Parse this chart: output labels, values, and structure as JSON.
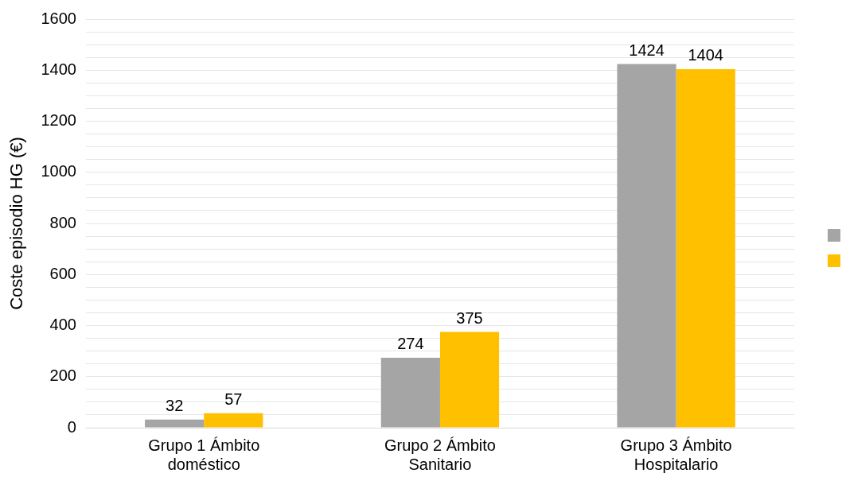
{
  "chart_data": {
    "type": "bar",
    "ylabel": "Coste episodio HG (€)",
    "categories": [
      "Grupo 1 Ámbito doméstico",
      "Grupo 2 Ámbito Sanitario",
      "Grupo 3 Ámbito Hospitalario"
    ],
    "series": [
      {
        "color": "#a5a5a5",
        "values": [
          32,
          274,
          1424
        ]
      },
      {
        "color": "#ffc000",
        "values": [
          57,
          375,
          1404
        ]
      }
    ],
    "ylim": [
      0,
      1600
    ],
    "yticks": [
      0,
      {
        "value": 50,
        "label": null
      },
      {
        "value": 100,
        "label": null
      },
      {
        "value": 150,
        "label": null
      },
      200,
      {
        "value": 250,
        "label": null
      },
      {
        "value": 300,
        "label": null
      },
      {
        "value": 350,
        "label": null
      },
      400,
      {
        "value": 450,
        "label": null
      },
      {
        "value": 500,
        "label": null
      },
      {
        "value": 550,
        "label": null
      },
      600,
      {
        "value": 650,
        "label": null
      },
      {
        "value": 700,
        "label": null
      },
      {
        "value": 750,
        "label": null
      },
      800,
      {
        "value": 850,
        "label": null
      },
      {
        "value": 900,
        "label": null
      },
      {
        "value": 950,
        "label": null
      },
      1000,
      {
        "value": 1050,
        "label": null
      },
      {
        "value": 1100,
        "label": null
      },
      {
        "value": 1150,
        "label": null
      },
      1200,
      {
        "value": 1250,
        "label": null
      },
      {
        "value": 1300,
        "label": null
      },
      {
        "value": 1350,
        "label": null
      },
      1400,
      {
        "value": 1450,
        "label": null
      },
      {
        "value": 1500,
        "label": null
      },
      {
        "value": 1550,
        "label": null
      },
      1600
    ],
    "grid": true,
    "data_labels": true
  }
}
